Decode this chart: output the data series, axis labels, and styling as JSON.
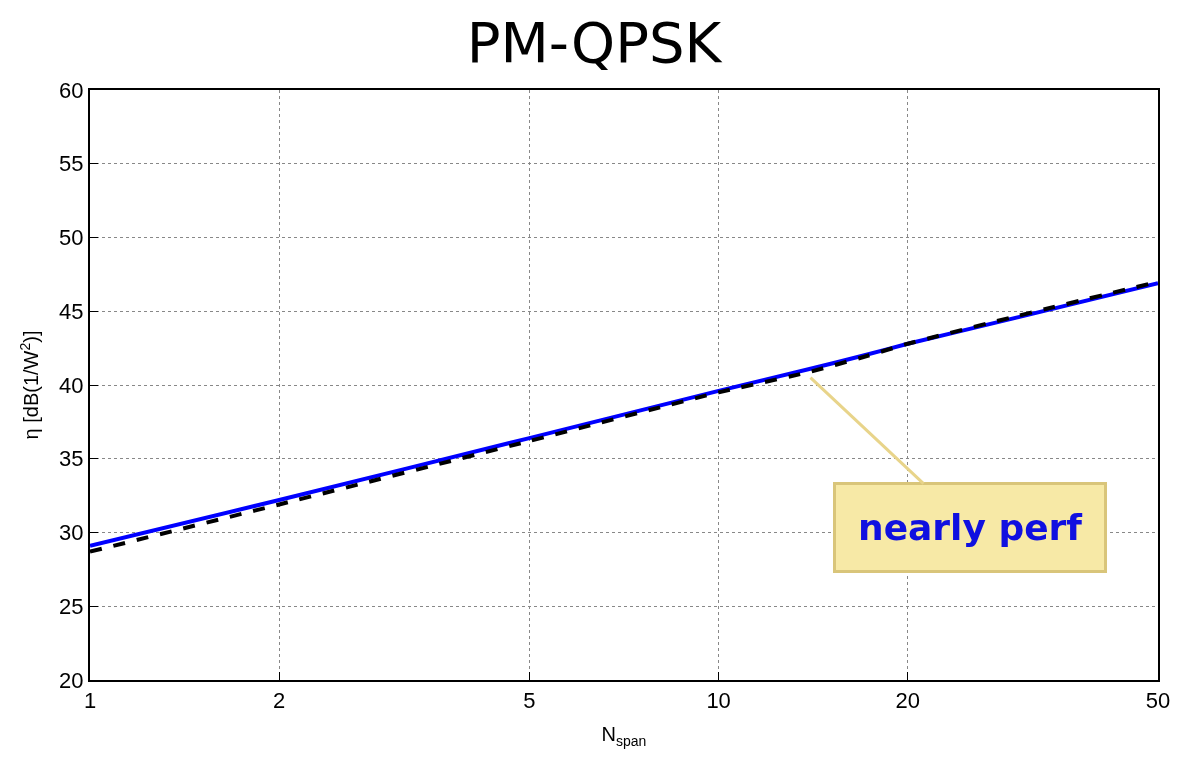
{
  "chart_data": {
    "type": "line",
    "title": "PM-QPSK",
    "xlabel": "N$_{span}$",
    "ylabel": "η [dB(1/W$^{2}$)]",
    "log": "x",
    "xlim": [
      1,
      50
    ],
    "xticks": [
      1,
      2,
      5,
      10,
      20,
      50
    ],
    "ylim": [
      20,
      60
    ],
    "yticks": [
      20,
      25,
      30,
      35,
      40,
      45,
      50,
      55,
      60
    ],
    "grid": true,
    "legend": false,
    "series": [
      {
        "color": "#0000ff",
        "line_style": "solid",
        "x": [
          1,
          2,
          5,
          10,
          14,
          17,
          20,
          30,
          50
        ],
        "values": [
          29.1,
          32.2,
          36.4,
          39.6,
          41.1,
          42.0,
          42.8,
          44.6,
          46.9
        ]
      },
      {
        "color": "#000000",
        "line_style": "dashed",
        "x": [
          1,
          2,
          5,
          10,
          14,
          17,
          20,
          30,
          50
        ],
        "values": [
          28.7,
          31.9,
          36.2,
          39.5,
          40.9,
          41.9,
          42.8,
          44.7,
          47.0
        ]
      }
    ],
    "annotations": [
      {
        "text": "nearly perf",
        "x": 14,
        "y": 40.5
      }
    ]
  }
}
